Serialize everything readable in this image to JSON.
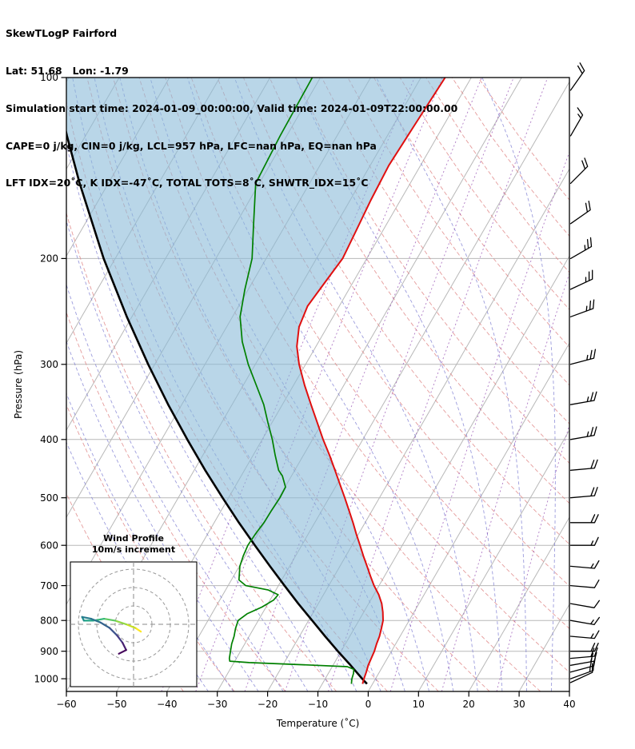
{
  "header": {
    "title": "SkewTLogP Fairford",
    "lat_lon": "Lat: 51.68   Lon: -1.79",
    "times": "Simulation start time: 2024-01-09_00:00:00, Valid time: 2024-01-09T22:00:00.00",
    "stability1": "CAPE=0 j/kg, CIN=0 j/kg, LCL=957 hPa, LFC=nan hPa, EQ=nan hPa",
    "stability2": "LFT IDX=20˚C, K IDX=-47˚C, TOTAL TOTS=8˚C, SHWTR_IDX=15˚C"
  },
  "chart_data": {
    "type": "skewt_log_p",
    "title": "SkewTLogP Fairford",
    "xlabel": "Temperature (˚C)",
    "ylabel": "Pressure (hPa)",
    "x_ticks": [
      -60,
      -50,
      -40,
      -30,
      -20,
      -10,
      0,
      10,
      20,
      30,
      40
    ],
    "y_ticks": [
      100,
      200,
      300,
      400,
      500,
      600,
      700,
      800,
      900,
      1000
    ],
    "x_range_c": [
      -60,
      40
    ],
    "pressure_range_hpa": [
      100,
      1050
    ],
    "skew_angle_deg": 30,
    "series": {
      "temperature_c": [
        [
          1020,
          -2.0
        ],
        [
          1000,
          -2.3
        ],
        [
          975,
          -2.6
        ],
        [
          950,
          -3.0
        ],
        [
          925,
          -3.2
        ],
        [
          900,
          -3.4
        ],
        [
          875,
          -3.8
        ],
        [
          850,
          -4.1
        ],
        [
          825,
          -4.6
        ],
        [
          800,
          -5.2
        ],
        [
          775,
          -6.2
        ],
        [
          750,
          -7.4
        ],
        [
          725,
          -9.0
        ],
        [
          700,
          -11.0
        ],
        [
          675,
          -12.8
        ],
        [
          650,
          -14.6
        ],
        [
          625,
          -16.5
        ],
        [
          600,
          -18.4
        ],
        [
          575,
          -20.4
        ],
        [
          550,
          -22.4
        ],
        [
          525,
          -24.6
        ],
        [
          500,
          -26.9
        ],
        [
          475,
          -29.4
        ],
        [
          450,
          -32.0
        ],
        [
          425,
          -34.8
        ],
        [
          400,
          -37.9
        ],
        [
          375,
          -41.0
        ],
        [
          350,
          -44.3
        ],
        [
          325,
          -47.8
        ],
        [
          300,
          -51.3
        ],
        [
          280,
          -53.8
        ],
        [
          260,
          -55.6
        ],
        [
          240,
          -56.3
        ],
        [
          220,
          -55.6
        ],
        [
          200,
          -54.8
        ],
        [
          180,
          -55.3
        ],
        [
          160,
          -55.9
        ],
        [
          140,
          -56.3
        ],
        [
          120,
          -55.8
        ],
        [
          100,
          -55.2
        ]
      ],
      "dewpoint_c": [
        [
          1020,
          -4.2
        ],
        [
          1000,
          -4.7
        ],
        [
          980,
          -5.0
        ],
        [
          965,
          -5.4
        ],
        [
          955,
          -7.0
        ],
        [
          948,
          -16.0
        ],
        [
          940,
          -27.0
        ],
        [
          935,
          -31.0
        ],
        [
          925,
          -31.4
        ],
        [
          900,
          -32.0
        ],
        [
          875,
          -32.6
        ],
        [
          850,
          -33.0
        ],
        [
          825,
          -33.6
        ],
        [
          800,
          -34.0
        ],
        [
          780,
          -33.0
        ],
        [
          760,
          -30.8
        ],
        [
          740,
          -29.3
        ],
        [
          725,
          -29.0
        ],
        [
          712,
          -31.5
        ],
        [
          700,
          -36.5
        ],
        [
          685,
          -38.5
        ],
        [
          650,
          -39.9
        ],
        [
          625,
          -40.4
        ],
        [
          600,
          -40.7
        ],
        [
          575,
          -40.5
        ],
        [
          550,
          -40.1
        ],
        [
          525,
          -40.0
        ],
        [
          500,
          -39.8
        ],
        [
          480,
          -39.9
        ],
        [
          460,
          -41.8
        ],
        [
          450,
          -43.2
        ],
        [
          425,
          -45.6
        ],
        [
          400,
          -48.0
        ],
        [
          375,
          -50.8
        ],
        [
          350,
          -53.7
        ],
        [
          325,
          -57.4
        ],
        [
          300,
          -61.4
        ],
        [
          275,
          -65.2
        ],
        [
          250,
          -68.5
        ],
        [
          225,
          -70.7
        ],
        [
          200,
          -72.8
        ],
        [
          175,
          -76.5
        ],
        [
          150,
          -80.7
        ],
        [
          125,
          -81.3
        ],
        [
          100,
          -81.6
        ]
      ],
      "parcel_c": [
        [
          1020,
          -1.1
        ],
        [
          1000,
          -2.65
        ],
        [
          950,
          -6.5
        ],
        [
          900,
          -10.65
        ],
        [
          850,
          -14.9
        ],
        [
          800,
          -19.3
        ],
        [
          750,
          -24.0
        ],
        [
          700,
          -28.8
        ],
        [
          650,
          -33.9
        ],
        [
          600,
          -39.3
        ],
        [
          550,
          -45.1
        ],
        [
          500,
          -51.2
        ],
        [
          450,
          -57.8
        ],
        [
          400,
          -64.9
        ],
        [
          350,
          -72.7
        ],
        [
          300,
          -81.3
        ],
        [
          250,
          -91.0
        ],
        [
          200,
          -102.3
        ],
        [
          150,
          -115.7
        ],
        [
          125,
          -123.7
        ],
        [
          100,
          -133.0
        ]
      ]
    },
    "background": {
      "isotherms_c": [
        -130,
        -120,
        -110,
        -100,
        -90,
        -80,
        -70,
        -60,
        -50,
        -40,
        -30,
        -20,
        -10,
        0,
        10,
        20,
        30,
        40
      ],
      "dry_adiabats_theta_c": [
        -40,
        -30,
        -20,
        -10,
        0,
        10,
        20,
        30,
        40,
        50,
        60,
        70,
        80,
        90,
        100,
        110,
        120,
        130,
        140,
        150,
        160
      ],
      "moist_adiabats_t0_c": [
        -35,
        -30,
        -25,
        -20,
        -15,
        -10,
        -5,
        0,
        5,
        10,
        15,
        20,
        25,
        30,
        35,
        40
      ],
      "mixing_ratios_g_kg": [
        0.1,
        0.2,
        0.5,
        1,
        2,
        5,
        10,
        20
      ]
    },
    "colors": {
      "temperature": "#e01010",
      "dewpoint": "#008000",
      "parcel": "#000000",
      "shading": "#8bbbd9",
      "shading_opacity": 0.6,
      "isotherms": "#b8b8b8",
      "pressure_lines": "#b8b8b8",
      "dry_adiabats": "#e08989",
      "moist_adiabats": "#7b7bd1",
      "mixing_ratio": "#9b59b6",
      "barbs": "#000000"
    },
    "wind_barbs": {
      "units": "m/s",
      "levels_p_speed_dir": [
        [
          105,
          18,
          35
        ],
        [
          125,
          16,
          30
        ],
        [
          150,
          20,
          45
        ],
        [
          175,
          22,
          55
        ],
        [
          200,
          25,
          60
        ],
        [
          225,
          26,
          65
        ],
        [
          250,
          26,
          70
        ],
        [
          300,
          27,
          75
        ],
        [
          350,
          26,
          80
        ],
        [
          400,
          24,
          80
        ],
        [
          450,
          22,
          85
        ],
        [
          500,
          20,
          85
        ],
        [
          550,
          18,
          90
        ],
        [
          600,
          15,
          90
        ],
        [
          650,
          14,
          95
        ],
        [
          700,
          12,
          95
        ],
        [
          750,
          12,
          100
        ],
        [
          800,
          13,
          100
        ],
        [
          850,
          15,
          95
        ],
        [
          900,
          18,
          90
        ],
        [
          925,
          20,
          85
        ],
        [
          950,
          22,
          80
        ],
        [
          975,
          21,
          75
        ],
        [
          1000,
          17,
          70
        ],
        [
          1015,
          12,
          65
        ]
      ]
    },
    "hodograph": {
      "title": "Wind Profile",
      "subtitle": "10m/s increment",
      "ring_interval_ms": 10,
      "rings_ms": [
        10,
        20,
        30
      ],
      "trace_u_v_color": [
        [
          4,
          -4,
          "#fde725"
        ],
        [
          1,
          -2,
          "#c8e020"
        ],
        [
          -4,
          0,
          "#90d743"
        ],
        [
          -10,
          2,
          "#5ec962"
        ],
        [
          -16,
          3,
          "#35b779"
        ],
        [
          -22,
          2,
          "#20a486"
        ],
        [
          -27,
          2,
          "#21918c"
        ],
        [
          -28,
          4,
          "#287c8e"
        ],
        [
          -23,
          3,
          "#2c728e"
        ],
        [
          -18,
          1,
          "#33638d"
        ],
        [
          -13,
          -2,
          "#3b528b"
        ],
        [
          -9,
          -6,
          "#443983"
        ],
        [
          -6,
          -10,
          "#481f70"
        ],
        [
          -4,
          -14,
          "#46085c"
        ],
        [
          -8,
          -16,
          "#440154"
        ]
      ]
    }
  }
}
